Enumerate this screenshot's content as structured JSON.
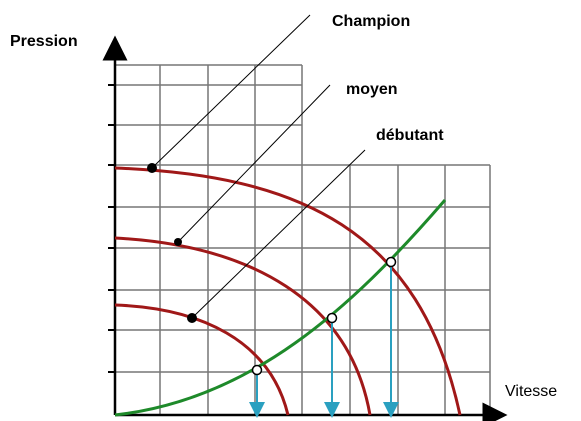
{
  "axes": {
    "y_label": "Pression",
    "x_label": "Vitesse"
  },
  "levels": [
    "Champion",
    "moyen",
    "débutant"
  ]
}
